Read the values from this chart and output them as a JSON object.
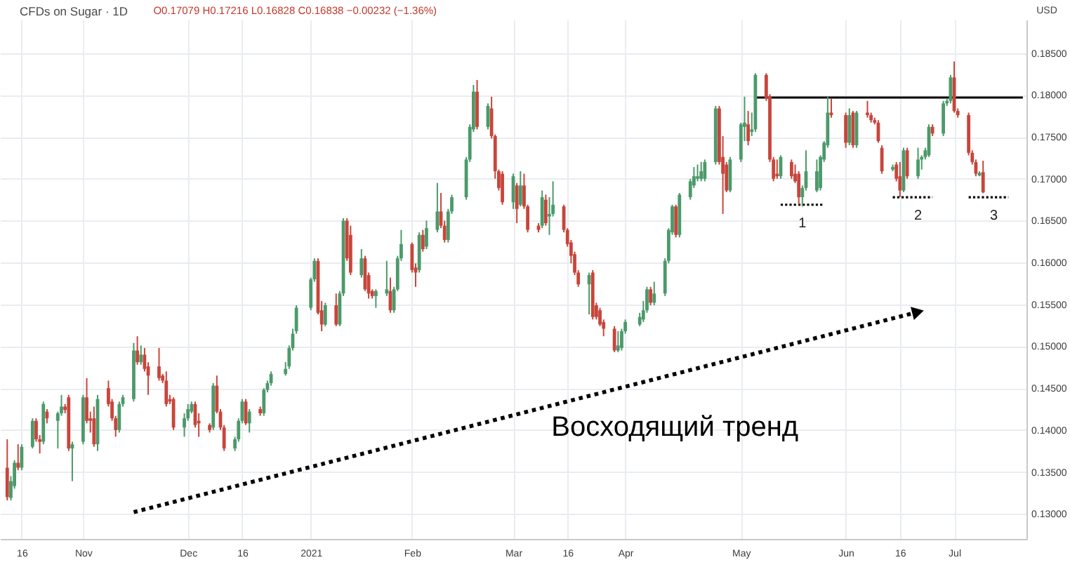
{
  "chart_data": {
    "type": "candlestick",
    "title": "CFDs on Sugar · 1D",
    "subtitle": "O0.17079 H0.17216 L0.16828 C0.16838 −0.00232 (−1.36%)",
    "ylabel": "USD",
    "x": [
      "2020-10-12",
      "2020-10-13",
      "2020-10-14",
      "2020-10-15",
      "2020-10-16",
      "2020-10-19",
      "2020-10-20",
      "2020-10-21",
      "2020-10-22",
      "2020-10-23",
      "2020-10-26",
      "2020-10-27",
      "2020-10-28",
      "2020-10-29",
      "2020-10-30",
      "2020-11-02",
      "2020-11-03",
      "2020-11-04",
      "2020-11-05",
      "2020-11-06",
      "2020-11-09",
      "2020-11-10",
      "2020-11-11",
      "2020-11-12",
      "2020-11-13",
      "2020-11-16",
      "2020-11-17",
      "2020-11-18",
      "2020-11-19",
      "2020-11-20",
      "2020-11-23",
      "2020-11-24",
      "2020-11-25",
      "2020-11-26",
      "2020-11-27",
      "2020-11-30",
      "2020-12-01",
      "2020-12-02",
      "2020-12-03",
      "2020-12-04",
      "2020-12-07",
      "2020-12-08",
      "2020-12-09",
      "2020-12-10",
      "2020-12-11",
      "2020-12-14",
      "2020-12-15",
      "2020-12-16",
      "2020-12-17",
      "2020-12-18",
      "2020-12-21",
      "2020-12-22",
      "2020-12-23",
      "2020-12-24",
      "2020-12-28",
      "2020-12-29",
      "2020-12-30",
      "2020-12-31",
      "2021-01-04",
      "2021-01-05",
      "2021-01-06",
      "2021-01-07",
      "2021-01-08",
      "2021-01-11",
      "2021-01-12",
      "2021-01-13",
      "2021-01-14",
      "2021-01-15",
      "2021-01-18",
      "2021-01-19",
      "2021-01-20",
      "2021-01-21",
      "2021-01-22",
      "2021-01-25",
      "2021-01-26",
      "2021-01-27",
      "2021-01-28",
      "2021-01-29",
      "2021-02-01",
      "2021-02-02",
      "2021-02-03",
      "2021-02-04",
      "2021-02-05",
      "2021-02-08",
      "2021-02-09",
      "2021-02-10",
      "2021-02-11",
      "2021-02-12",
      "2021-02-16",
      "2021-02-17",
      "2021-02-18",
      "2021-02-19",
      "2021-02-22",
      "2021-02-23",
      "2021-02-24",
      "2021-02-25",
      "2021-02-26",
      "2021-03-01",
      "2021-03-02",
      "2021-03-03",
      "2021-03-04",
      "2021-03-05",
      "2021-03-08",
      "2021-03-09",
      "2021-03-10",
      "2021-03-11",
      "2021-03-12",
      "2021-03-15",
      "2021-03-16",
      "2021-03-17",
      "2021-03-18",
      "2021-03-19",
      "2021-03-22",
      "2021-03-23",
      "2021-03-24",
      "2021-03-25",
      "2021-03-26",
      "2021-03-29",
      "2021-03-30",
      "2021-03-31",
      "2021-04-01",
      "2021-04-05",
      "2021-04-06",
      "2021-04-07",
      "2021-04-08",
      "2021-04-09",
      "2021-04-12",
      "2021-04-13",
      "2021-04-14",
      "2021-04-15",
      "2021-04-16",
      "2021-04-19",
      "2021-04-20",
      "2021-04-21",
      "2021-04-22",
      "2021-04-23",
      "2021-04-26",
      "2021-04-27",
      "2021-04-28",
      "2021-04-29",
      "2021-04-30",
      "2021-05-03",
      "2021-05-04",
      "2021-05-05",
      "2021-05-06",
      "2021-05-07",
      "2021-05-10",
      "2021-05-11",
      "2021-05-12",
      "2021-05-13",
      "2021-05-14",
      "2021-05-17",
      "2021-05-18",
      "2021-05-19",
      "2021-05-20",
      "2021-05-21",
      "2021-05-24",
      "2021-05-25",
      "2021-05-26",
      "2021-05-27",
      "2021-05-28",
      "2021-06-01",
      "2021-06-02",
      "2021-06-03",
      "2021-06-04",
      "2021-06-07",
      "2021-06-08",
      "2021-06-09",
      "2021-06-10",
      "2021-06-11",
      "2021-06-14",
      "2021-06-15",
      "2021-06-16",
      "2021-06-17",
      "2021-06-18",
      "2021-06-21",
      "2021-06-22",
      "2021-06-23",
      "2021-06-24",
      "2021-06-25",
      "2021-06-28",
      "2021-06-29",
      "2021-06-30",
      "2021-07-01",
      "2021-07-02",
      "2021-07-05",
      "2021-07-06",
      "2021-07-07",
      "2021-07-08",
      "2021-07-09"
    ],
    "ohlc": [
      [
        0.1355,
        0.1389,
        0.1316,
        0.132
      ],
      [
        0.1319,
        0.1345,
        0.1316,
        0.1339
      ],
      [
        0.1333,
        0.1364,
        0.133,
        0.1361
      ],
      [
        0.1361,
        0.1383,
        0.1352,
        0.1355
      ],
      [
        0.1355,
        0.1383,
        0.1352,
        0.138
      ],
      [
        0.138,
        0.1414,
        0.1378,
        0.1411
      ],
      [
        0.1411,
        0.1414,
        0.1386,
        0.1389
      ],
      [
        0.1389,
        0.1394,
        0.1372,
        0.1386
      ],
      [
        0.1386,
        0.1434,
        0.1383,
        0.1431
      ],
      [
        0.1422,
        0.1425,
        0.1408,
        0.1414
      ],
      [
        0.1411,
        0.1422,
        0.1378,
        0.142
      ],
      [
        0.142,
        0.1442,
        0.1417,
        0.1428
      ],
      [
        0.1428,
        0.1431,
        0.142,
        0.1424
      ],
      [
        0.1439,
        0.1442,
        0.1375,
        0.1378
      ],
      [
        0.1378,
        0.1386,
        0.1339,
        0.1383
      ],
      [
        0.1386,
        0.1442,
        0.1383,
        0.1439
      ],
      [
        0.1439,
        0.1462,
        0.1408,
        0.1411
      ],
      [
        0.1414,
        0.1422,
        0.1397,
        0.1411
      ],
      [
        0.1414,
        0.1428,
        0.138,
        0.1383
      ],
      [
        0.1383,
        0.1442,
        0.1375,
        0.1437
      ],
      [
        0.145,
        0.1459,
        0.1428,
        0.1431
      ],
      [
        0.1434,
        0.1437,
        0.1411,
        0.1414
      ],
      [
        0.1414,
        0.1417,
        0.1392,
        0.14
      ],
      [
        0.14,
        0.1434,
        0.1397,
        0.1431
      ],
      [
        0.1431,
        0.1442,
        0.1428,
        0.1439
      ],
      [
        0.1437,
        0.1504,
        0.1434,
        0.1495
      ],
      [
        0.1495,
        0.1512,
        0.1478,
        0.1481
      ],
      [
        0.1481,
        0.1501,
        0.1478,
        0.149
      ],
      [
        0.149,
        0.1498,
        0.147,
        0.1473
      ],
      [
        0.1476,
        0.1481,
        0.1442,
        0.1465
      ],
      [
        0.1476,
        0.1498,
        0.1459,
        0.1462
      ],
      [
        0.1465,
        0.1467,
        0.1456,
        0.1459
      ],
      [
        0.1459,
        0.147,
        0.1428,
        0.1431
      ],
      [
        0.1437,
        0.1442,
        0.1431,
        0.1434
      ],
      [
        0.1437,
        0.1439,
        0.14,
        0.1403
      ],
      [
        0.1403,
        0.142,
        0.1392,
        0.1414
      ],
      [
        0.1414,
        0.1431,
        0.1411,
        0.1425
      ],
      [
        0.1422,
        0.1434,
        0.142,
        0.1431
      ],
      [
        0.1431,
        0.1434,
        0.1403,
        0.1406
      ],
      [
        0.1411,
        0.142,
        0.1392,
        0.1408
      ],
      [
        0.1406,
        0.1408,
        0.1397,
        0.14
      ],
      [
        0.1403,
        0.1456,
        0.14,
        0.1453
      ],
      [
        0.1453,
        0.1465,
        0.142,
        0.1422
      ],
      [
        0.1422,
        0.1425,
        0.14,
        0.1403
      ],
      [
        0.1403,
        0.1406,
        0.1375,
        0.1378
      ],
      [
        0.1378,
        0.1392,
        0.1375,
        0.1389
      ],
      [
        0.1389,
        0.1414,
        0.1386,
        0.1411
      ],
      [
        0.1411,
        0.1437,
        0.1408,
        0.1434
      ],
      [
        0.1434,
        0.1437,
        0.1406,
        0.1408
      ],
      [
        0.1408,
        0.1425,
        0.1397,
        0.1422
      ],
      [
        0.1425,
        0.1428,
        0.1417,
        0.142
      ],
      [
        0.142,
        0.145,
        0.1417,
        0.1448
      ],
      [
        0.1448,
        0.1459,
        0.1445,
        0.1456
      ],
      [
        0.1456,
        0.147,
        0.1453,
        0.1467
      ],
      [
        0.1467,
        0.1481,
        0.1465,
        0.1473
      ],
      [
        0.1476,
        0.1501,
        0.1473,
        0.1498
      ],
      [
        0.1498,
        0.1521,
        0.1495,
        0.1515
      ],
      [
        0.1518,
        0.1549,
        0.1515,
        0.1546
      ],
      [
        0.1546,
        0.1582,
        0.1543,
        0.158
      ],
      [
        0.158,
        0.1605,
        0.1577,
        0.1602
      ],
      [
        0.1602,
        0.1605,
        0.1538,
        0.154
      ],
      [
        0.1543,
        0.1554,
        0.1518,
        0.1526
      ],
      [
        0.1526,
        0.1552,
        0.1524,
        0.1549
      ],
      [
        0.1549,
        0.1563,
        0.1524,
        0.1526
      ],
      [
        0.1526,
        0.1566,
        0.1524,
        0.1563
      ],
      [
        0.1563,
        0.1653,
        0.156,
        0.165
      ],
      [
        0.165,
        0.1653,
        0.1602,
        0.1605
      ],
      [
        0.1633,
        0.1644,
        0.1585,
        0.1588
      ],
      [
        0.1585,
        0.1616,
        0.1582,
        0.1605
      ],
      [
        0.1605,
        0.1608,
        0.1566,
        0.1568
      ],
      [
        0.1585,
        0.1588,
        0.1557,
        0.1563
      ],
      [
        0.1566,
        0.1568,
        0.1557,
        0.156
      ],
      [
        0.156,
        0.1568,
        0.1546,
        0.1566
      ],
      [
        0.1563,
        0.1602,
        0.156,
        0.1568
      ],
      [
        0.1566,
        0.1582,
        0.154,
        0.1543
      ],
      [
        0.1543,
        0.1571,
        0.154,
        0.1568
      ],
      [
        0.1568,
        0.1608,
        0.1566,
        0.1605
      ],
      [
        0.1605,
        0.1639,
        0.1602,
        0.1622
      ],
      [
        0.1622,
        0.1624,
        0.1588,
        0.1591
      ],
      [
        0.1594,
        0.1599,
        0.1571,
        0.1588
      ],
      [
        0.1591,
        0.1636,
        0.1588,
        0.1633
      ],
      [
        0.1633,
        0.1639,
        0.1613,
        0.1616
      ],
      [
        0.1619,
        0.165,
        0.1616,
        0.1641
      ],
      [
        0.1639,
        0.1695,
        0.1636,
        0.1661
      ],
      [
        0.1661,
        0.1683,
        0.1641,
        0.1644
      ],
      [
        0.1644,
        0.165,
        0.1624,
        0.1627
      ],
      [
        0.1627,
        0.1664,
        0.1624,
        0.1661
      ],
      [
        0.1661,
        0.1681,
        0.1658,
        0.1678
      ],
      [
        0.1678,
        0.1726,
        0.1675,
        0.1723
      ],
      [
        0.1723,
        0.1765,
        0.172,
        0.1762
      ],
      [
        0.1759,
        0.1812,
        0.1756,
        0.1804
      ],
      [
        0.1804,
        0.1818,
        0.1759,
        0.1762
      ],
      [
        0.1762,
        0.179,
        0.1759,
        0.1787
      ],
      [
        0.1784,
        0.1798,
        0.1748,
        0.1751
      ],
      [
        0.1751,
        0.1753,
        0.17,
        0.1709
      ],
      [
        0.1709,
        0.1711,
        0.1686,
        0.1689
      ],
      [
        0.1706,
        0.1709,
        0.1669,
        0.1672
      ],
      [
        0.1672,
        0.1706,
        0.1664,
        0.1703
      ],
      [
        0.1692,
        0.1695,
        0.1647,
        0.1664
      ],
      [
        0.1669,
        0.1709,
        0.1667,
        0.1692
      ],
      [
        0.1692,
        0.1706,
        0.1664,
        0.1667
      ],
      [
        0.1667,
        0.1669,
        0.1636,
        0.1639
      ],
      [
        0.1644,
        0.1647,
        0.1636,
        0.1639
      ],
      [
        0.1644,
        0.1686,
        0.1641,
        0.1678
      ],
      [
        0.1675,
        0.1681,
        0.1644,
        0.1647
      ],
      [
        0.1655,
        0.1678,
        0.1633,
        0.1658
      ],
      [
        0.1658,
        0.1697,
        0.1655,
        0.1669
      ],
      [
        0.1667,
        0.1669,
        0.1636,
        0.1639
      ],
      [
        0.1639,
        0.1641,
        0.1619,
        0.1622
      ],
      [
        0.1624,
        0.1627,
        0.1599,
        0.1608
      ],
      [
        0.161,
        0.1613,
        0.1585,
        0.1588
      ],
      [
        0.1588,
        0.1591,
        0.1571,
        0.1574
      ],
      [
        0.1574,
        0.1588,
        0.1538,
        0.1585
      ],
      [
        0.1588,
        0.1591,
        0.1532,
        0.1535
      ],
      [
        0.1549,
        0.1552,
        0.1532,
        0.1535
      ],
      [
        0.1543,
        0.1546,
        0.1524,
        0.1526
      ],
      [
        0.1529,
        0.1532,
        0.1512,
        0.1521
      ],
      [
        0.1521,
        0.1524,
        0.1493,
        0.1495
      ],
      [
        0.1495,
        0.1518,
        0.1493,
        0.1501
      ],
      [
        0.1498,
        0.1521,
        0.1495,
        0.1518
      ],
      [
        0.1518,
        0.1532,
        0.1515,
        0.1529
      ],
      [
        0.1526,
        0.154,
        0.1524,
        0.1535
      ],
      [
        0.1532,
        0.1554,
        0.1529,
        0.1543
      ],
      [
        0.1543,
        0.1571,
        0.154,
        0.1568
      ],
      [
        0.1568,
        0.1571,
        0.1549,
        0.1552
      ],
      [
        0.1552,
        0.1577,
        0.1549,
        0.1563
      ],
      [
        0.1563,
        0.1605,
        0.156,
        0.1602
      ],
      [
        0.1602,
        0.1641,
        0.1599,
        0.1639
      ],
      [
        0.1636,
        0.1669,
        0.1633,
        0.1667
      ],
      [
        0.1667,
        0.1669,
        0.163,
        0.1633
      ],
      [
        0.1633,
        0.1683,
        0.163,
        0.1681
      ],
      [
        0.1678,
        0.17,
        0.1675,
        0.1697
      ],
      [
        0.1692,
        0.1714,
        0.1689,
        0.1703
      ],
      [
        0.17,
        0.1717,
        0.1697,
        0.1703
      ],
      [
        0.17,
        0.172,
        0.1697,
        0.1709
      ],
      [
        0.17,
        0.1723,
        0.1697,
        0.172
      ],
      [
        0.172,
        0.1787,
        0.1717,
        0.1784
      ],
      [
        0.1784,
        0.1787,
        0.1717,
        0.172
      ],
      [
        0.1726,
        0.1751,
        0.1658,
        0.1706
      ],
      [
        0.1717,
        0.172,
        0.1684,
        0.1686
      ],
      [
        0.1686,
        0.1726,
        0.1684,
        0.1723
      ],
      [
        0.1723,
        0.1767,
        0.172,
        0.1765
      ],
      [
        0.1762,
        0.1798,
        0.1745,
        0.1767
      ],
      [
        0.1765,
        0.1781,
        0.174,
        0.1745
      ],
      [
        0.1756,
        0.1779,
        0.1751,
        0.1759
      ],
      [
        0.1759,
        0.1826,
        0.1756,
        0.1824
      ],
      [
        0.1824,
        0.1826,
        0.1793,
        0.1796
      ],
      [
        0.1798,
        0.1801,
        0.172,
        0.1723
      ],
      [
        0.1723,
        0.1726,
        0.1697,
        0.17
      ],
      [
        0.1706,
        0.1723,
        0.17,
        0.1703
      ],
      [
        0.1703,
        0.1728,
        0.17,
        0.1726
      ],
      [
        0.172,
        0.1723,
        0.17,
        0.1703
      ],
      [
        0.1706,
        0.1717,
        0.1695,
        0.1697
      ],
      [
        0.1706,
        0.1709,
        0.1669,
        0.1678
      ],
      [
        0.1678,
        0.1692,
        0.1667,
        0.1689
      ],
      [
        0.1689,
        0.1734,
        0.1686,
        0.1709
      ],
      [
        0.1686,
        0.1723,
        0.1684,
        0.1709
      ],
      [
        0.1689,
        0.1728,
        0.1686,
        0.1726
      ],
      [
        0.1723,
        0.1745,
        0.172,
        0.1743
      ],
      [
        0.174,
        0.1798,
        0.1737,
        0.1779
      ],
      [
        0.1779,
        0.1796,
        0.1773,
        0.1776
      ],
      [
        0.1776,
        0.1779,
        0.1737,
        0.1743
      ],
      [
        0.1743,
        0.1784,
        0.174,
        0.1776
      ],
      [
        0.1779,
        0.1781,
        0.1737,
        0.174
      ],
      [
        0.174,
        0.1781,
        0.1737,
        0.1779
      ],
      [
        0.1779,
        0.1793,
        0.1773,
        0.1776
      ],
      [
        0.1776,
        0.1779,
        0.1767,
        0.177
      ],
      [
        0.177,
        0.1773,
        0.1765,
        0.1767
      ],
      [
        0.1767,
        0.177,
        0.1743,
        0.1745
      ],
      [
        0.1737,
        0.174,
        0.1706,
        0.1709
      ],
      [
        0.1711,
        0.1717,
        0.1709,
        0.1714
      ],
      [
        0.1717,
        0.172,
        0.1697,
        0.17
      ],
      [
        0.1703,
        0.172,
        0.1678,
        0.1686
      ],
      [
        0.1686,
        0.1737,
        0.1684,
        0.1734
      ],
      [
        0.1734,
        0.1737,
        0.17,
        0.1703
      ],
      [
        0.1703,
        0.1737,
        0.17,
        0.1723
      ],
      [
        0.1723,
        0.1728,
        0.1711,
        0.1726
      ],
      [
        0.1726,
        0.1737,
        0.1723,
        0.1734
      ],
      [
        0.1728,
        0.1765,
        0.1726,
        0.1762
      ],
      [
        0.1762,
        0.1765,
        0.1751,
        0.1754
      ],
      [
        0.1754,
        0.1793,
        0.1751,
        0.179
      ],
      [
        0.179,
        0.1796,
        0.1787,
        0.1793
      ],
      [
        0.1793,
        0.1824,
        0.179,
        0.1821
      ],
      [
        0.1821,
        0.184,
        0.1779,
        0.1781
      ],
      [
        0.1781,
        0.1784,
        0.1773,
        0.1776
      ],
      [
        0.1776,
        0.1779,
        0.1728,
        0.1731
      ],
      [
        0.1731,
        0.1734,
        0.1717,
        0.172
      ],
      [
        0.172,
        0.1723,
        0.1703,
        0.1706
      ],
      [
        0.1704,
        0.1709,
        0.1703,
        0.1707
      ],
      [
        0.17079,
        0.17216,
        0.16828,
        0.16838
      ]
    ],
    "colors": [
      "#c8453b",
      "#4c9a6a",
      "#4c9a6a",
      "#c8453b",
      "#4c9a6a",
      "#4c9a6a",
      "#c8453b",
      "#c8453b",
      "#4c9a6a",
      "#c8453b",
      "#4c9a6a",
      "#4c9a6a",
      "#c8453b",
      "#c8453b",
      "#4c9a6a",
      "#4c9a6a",
      "#c8453b",
      "#c8453b",
      "#c8453b",
      "#4c9a6a",
      "#c8453b",
      "#c8453b",
      "#c8453b",
      "#4c9a6a",
      "#4c9a6a",
      "#4c9a6a",
      "#c8453b",
      "#4c9a6a",
      "#c8453b",
      "#c8453b",
      "#c8453b",
      "#c8453b",
      "#c8453b",
      "#c8453b",
      "#c8453b",
      "#4c9a6a",
      "#4c9a6a",
      "#4c9a6a",
      "#c8453b",
      "#c8453b",
      "#c8453b",
      "#4c9a6a",
      "#c8453b",
      "#c8453b",
      "#c8453b",
      "#4c9a6a",
      "#4c9a6a",
      "#4c9a6a",
      "#c8453b",
      "#4c9a6a",
      "#c8453b",
      "#4c9a6a",
      "#4c9a6a",
      "#4c9a6a",
      "#4c9a6a",
      "#4c9a6a",
      "#4c9a6a",
      "#4c9a6a",
      "#4c9a6a",
      "#4c9a6a",
      "#c8453b",
      "#c8453b",
      "#4c9a6a",
      "#c8453b",
      "#4c9a6a",
      "#4c9a6a",
      "#c8453b",
      "#c8453b",
      "#4c9a6a",
      "#c8453b",
      "#c8453b",
      "#c8453b",
      "#4c9a6a",
      "#4c9a6a",
      "#c8453b",
      "#4c9a6a",
      "#4c9a6a",
      "#4c9a6a",
      "#c8453b",
      "#c8453b",
      "#4c9a6a",
      "#c8453b",
      "#4c9a6a",
      "#4c9a6a",
      "#c8453b",
      "#c8453b",
      "#4c9a6a",
      "#4c9a6a",
      "#4c9a6a",
      "#4c9a6a",
      "#4c9a6a",
      "#c8453b",
      "#4c9a6a",
      "#c8453b",
      "#c8453b",
      "#c8453b",
      "#c8453b",
      "#4c9a6a",
      "#c8453b",
      "#4c9a6a",
      "#c8453b",
      "#c8453b",
      "#c8453b",
      "#4c9a6a",
      "#c8453b",
      "#4c9a6a",
      "#4c9a6a",
      "#c8453b",
      "#c8453b",
      "#c8453b",
      "#c8453b",
      "#c8453b",
      "#4c9a6a",
      "#c8453b",
      "#c8453b",
      "#c8453b",
      "#c8453b",
      "#c8453b",
      "#4c9a6a",
      "#4c9a6a",
      "#4c9a6a",
      "#4c9a6a",
      "#4c9a6a",
      "#4c9a6a",
      "#c8453b",
      "#4c9a6a",
      "#4c9a6a",
      "#4c9a6a",
      "#4c9a6a",
      "#c8453b",
      "#4c9a6a",
      "#4c9a6a",
      "#4c9a6a",
      "#4c9a6a",
      "#4c9a6a",
      "#4c9a6a",
      "#4c9a6a",
      "#c8453b",
      "#c8453b",
      "#c8453b",
      "#4c9a6a",
      "#4c9a6a",
      "#4c9a6a",
      "#c8453b",
      "#4c9a6a",
      "#4c9a6a",
      "#c8453b",
      "#c8453b",
      "#c8453b",
      "#c8453b",
      "#4c9a6a",
      "#c8453b",
      "#c8453b",
      "#c8453b",
      "#4c9a6a",
      "#4c9a6a",
      "#4c9a6a",
      "#4c9a6a",
      "#4c9a6a",
      "#4c9a6a",
      "#c8453b",
      "#c8453b",
      "#4c9a6a",
      "#c8453b",
      "#4c9a6a",
      "#c8453b",
      "#c8453b",
      "#c8453b",
      "#c8453b",
      "#c8453b",
      "#4c9a6a",
      "#c8453b",
      "#c8453b",
      "#4c9a6a",
      "#c8453b",
      "#4c9a6a",
      "#4c9a6a",
      "#4c9a6a",
      "#4c9a6a",
      "#c8453b",
      "#4c9a6a",
      "#4c9a6a",
      "#4c9a6a",
      "#c8453b",
      "#c8453b",
      "#c8453b",
      "#c8453b",
      "#c8453b",
      "#4c9a6a",
      "#c8453b"
    ],
    "series": [
      {
        "type": "line",
        "color": "#000000",
        "line_style": "solid",
        "x": [
          "2021-05-07",
          "2021-07-20"
        ],
        "values": [
          0.1797,
          0.1797
        ]
      },
      {
        "type": "line",
        "color": "#000000",
        "line_style": "dotted",
        "x": [
          "2021-05-14",
          "2021-05-26"
        ],
        "values": [
          0.1669,
          0.1669
        ]
      },
      {
        "type": "line",
        "color": "#000000",
        "line_style": "dotted",
        "x": [
          "2021-06-14",
          "2021-06-25"
        ],
        "values": [
          0.1678,
          0.1678
        ]
      },
      {
        "type": "line",
        "color": "#000000",
        "line_style": "dotted",
        "x": [
          "2021-07-05",
          "2021-07-16"
        ],
        "values": [
          0.1678,
          0.1678
        ]
      },
      {
        "type": "line",
        "name": "Восходящий тренд",
        "color": "#000000",
        "line_style": "dotted",
        "marker": "triangle",
        "x": [
          "2020-11-16",
          "2021-06-21"
        ],
        "values": [
          0.1302,
          0.1541
        ]
      }
    ],
    "annotations": [
      {
        "text": "1",
        "x": "2021-05-20",
        "y": 0.1669
      },
      {
        "text": "2",
        "x": "2021-06-21",
        "y": 0.1678
      },
      {
        "text": "3",
        "x": "2021-07-12",
        "y": 0.1678
      }
    ],
    "xlim": [
      "2020-10-10",
      "2021-07-21"
    ],
    "ylim": [
      0.127,
      0.189
    ],
    "xticks": [
      {
        "value": "2020-10-16",
        "label": "16"
      },
      {
        "value": "2020-11-02",
        "label": "Nov"
      },
      {
        "value": "2020-12-01",
        "label": "Dec"
      },
      {
        "value": "2020-12-16",
        "label": "16"
      },
      {
        "value": "2021-01-04",
        "label": "2021"
      },
      {
        "value": "2021-02-01",
        "label": "Feb"
      },
      {
        "value": "2021-03-01",
        "label": "Mar"
      },
      {
        "value": "2021-03-16",
        "label": "16"
      },
      {
        "value": "2021-04-01",
        "label": "Apr"
      },
      {
        "value": "2021-05-03",
        "label": "May"
      },
      {
        "value": "2021-06-01",
        "label": "Jun"
      },
      {
        "value": "2021-06-16",
        "label": "16"
      },
      {
        "value": "2021-07-01",
        "label": "Jul"
      }
    ],
    "yticks": [
      {
        "value": 0.13,
        "label": "0.13000"
      },
      {
        "value": 0.135,
        "label": "0.13500"
      },
      {
        "value": 0.14,
        "label": "0.14000"
      },
      {
        "value": 0.145,
        "label": "0.14500"
      },
      {
        "value": 0.15,
        "label": "0.15000"
      },
      {
        "value": 0.155,
        "label": "0.15500"
      },
      {
        "value": 0.16,
        "label": "0.16000"
      },
      {
        "value": 0.165,
        "label": "0.16500"
      },
      {
        "value": 0.17,
        "label": "0.17000"
      },
      {
        "value": 0.175,
        "label": "0.17500"
      },
      {
        "value": 0.18,
        "label": "0.18000"
      },
      {
        "value": 0.185,
        "label": "0.18500"
      }
    ],
    "grid": true
  }
}
